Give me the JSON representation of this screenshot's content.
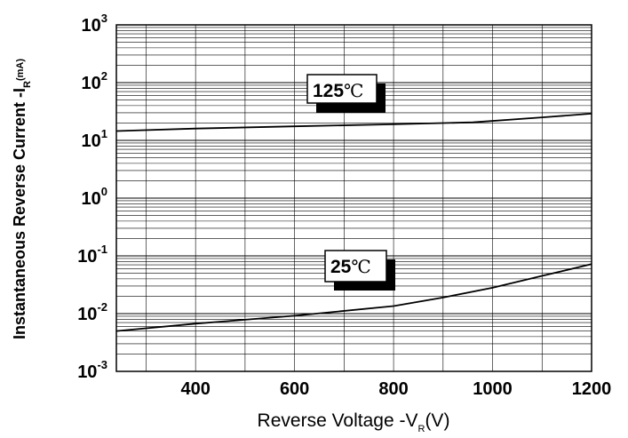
{
  "chart_data": {
    "type": "line",
    "xlabel_main": "Reverse Voltage -V",
    "xlabel_sub": "R",
    "xlabel_unit": "(V)",
    "ylabel_main": "Instantaneous Reverse Current -I",
    "ylabel_sub": "R",
    "ylabel_unit": "(mA)",
    "xlim": [
      240,
      1200
    ],
    "ylim": [
      0.001,
      1000
    ],
    "y_scale": "log",
    "grid": true,
    "x_ticks": [
      {
        "value": 400,
        "label": "400"
      },
      {
        "value": 600,
        "label": "600"
      },
      {
        "value": 800,
        "label": "800"
      },
      {
        "value": 1000,
        "label": "1000"
      },
      {
        "value": 1200,
        "label": "1200"
      }
    ],
    "y_ticks": [
      {
        "value": 1000,
        "base": "10",
        "exp": "3"
      },
      {
        "value": 100,
        "base": "10",
        "exp": "2"
      },
      {
        "value": 10,
        "base": "10",
        "exp": "1"
      },
      {
        "value": 1,
        "base": "10",
        "exp": "0"
      },
      {
        "value": 0.1,
        "base": "10",
        "exp": "-1"
      },
      {
        "value": 0.01,
        "base": "10",
        "exp": "-2"
      },
      {
        "value": 0.001,
        "base": "10",
        "exp": "-3"
      }
    ],
    "series": [
      {
        "name": "125℃",
        "label_num": "125",
        "label_unit": "℃",
        "x": [
          240,
          400,
          600,
          800,
          960,
          1100,
          1200
        ],
        "y": [
          14.5,
          16.0,
          17.5,
          19.0,
          20.5,
          25.0,
          29.0
        ]
      },
      {
        "name": "25℃",
        "label_num": "25",
        "label_unit": "℃",
        "x": [
          240,
          400,
          600,
          800,
          900,
          1000,
          1100,
          1200
        ],
        "y": [
          0.005,
          0.0067,
          0.0092,
          0.0135,
          0.019,
          0.028,
          0.045,
          0.072
        ]
      }
    ]
  }
}
